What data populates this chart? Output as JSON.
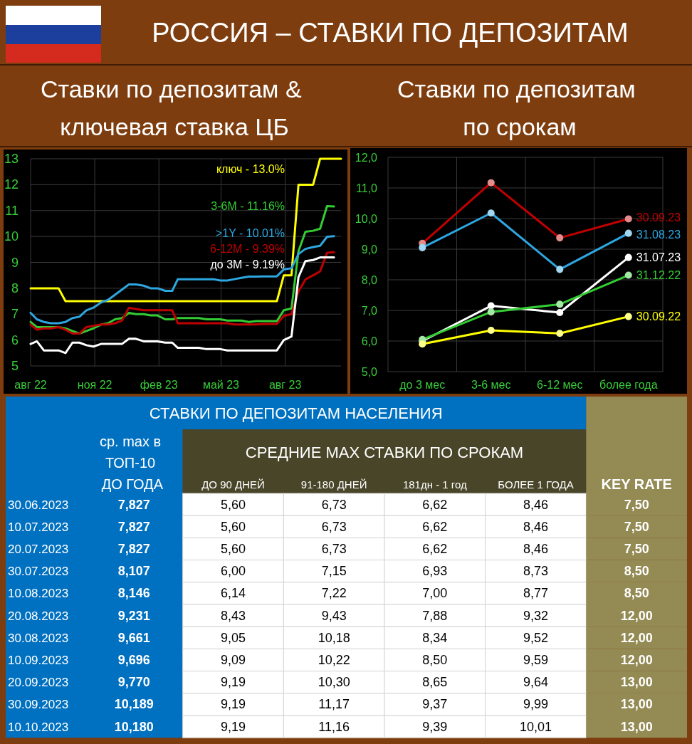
{
  "chart_data": [
    {
      "type": "other",
      "title": "РОССИЯ – СТАВКИ ПО ДЕПОЗИТАМ"
    },
    {
      "type": "line",
      "title": "Ставки по депозитам & ключевая ставка ЦБ",
      "x": [
        "2022-08-01",
        "2022-08-10",
        "2022-08-20",
        "2022-08-30",
        "2022-09-10",
        "2022-09-20",
        "2022-09-30",
        "2022-10-10",
        "2022-10-20",
        "2022-10-30",
        "2022-11-10",
        "2022-11-20",
        "2022-11-30",
        "2022-12-10",
        "2022-12-20",
        "2022-12-30",
        "2023-01-10",
        "2023-01-20",
        "2023-01-30",
        "2023-02-10",
        "2023-02-20",
        "2023-02-28",
        "2023-03-10",
        "2023-03-20",
        "2023-03-30",
        "2023-04-10",
        "2023-04-20",
        "2023-04-30",
        "2023-05-10",
        "2023-05-20",
        "2023-05-30",
        "2023-06-10",
        "2023-06-20",
        "2023-06-30",
        "2023-07-10",
        "2023-07-20",
        "2023-07-30",
        "2023-08-10",
        "2023-08-20",
        "2023-08-30",
        "2023-09-10",
        "2023-09-20",
        "2023-09-30",
        "2023-10-10"
      ],
      "xlim": [
        "2022-08-01",
        "2023-10-20"
      ],
      "xticks": [
        {
          "value": "2022-08-01",
          "label": "авг 22"
        },
        {
          "value": "2022-11-01",
          "label": "ноя 22"
        },
        {
          "value": "2023-02-01",
          "label": "фев 23"
        },
        {
          "value": "2023-05-01",
          "label": "май 23"
        },
        {
          "value": "2023-08-01",
          "label": "авг 23"
        }
      ],
      "ylim": [
        5,
        13
      ],
      "yticks": [
        5,
        6,
        7,
        8,
        9,
        10,
        11,
        12,
        13
      ],
      "grid": true,
      "series": [
        {
          "name": "ключ - 13.0%",
          "color": "#ffff00",
          "x": [
            "2022-08-01",
            "2022-09-10",
            "2022-09-20",
            "2023-07-20",
            "2023-07-30",
            "2023-08-10",
            "2023-08-20",
            "2023-09-10",
            "2023-09-20",
            "2023-10-20"
          ],
          "values": [
            8,
            8,
            7.5,
            7.5,
            8.5,
            8.5,
            12,
            12,
            13,
            13
          ]
        },
        {
          "name": "3-6M - 11.16%",
          "color": "#33cc33",
          "values": [
            6.7,
            6.5,
            6.5,
            6.5,
            6.5,
            6.45,
            6.35,
            6.25,
            6.35,
            6.45,
            6.6,
            6.65,
            6.8,
            6.85,
            7.05,
            7.0,
            7.0,
            6.95,
            6.95,
            6.8,
            6.8,
            6.85,
            6.85,
            6.85,
            6.85,
            6.8,
            6.8,
            6.8,
            6.75,
            6.75,
            6.75,
            6.7,
            6.73,
            6.73,
            6.73,
            6.73,
            7.15,
            7.22,
            9.43,
            10.18,
            10.22,
            10.3,
            11.17,
            11.16
          ]
        },
        {
          "name": ">1Y - 10.01%",
          "color": "#2ea6e0",
          "values": [
            7.05,
            6.8,
            6.7,
            6.65,
            6.65,
            6.7,
            6.85,
            6.9,
            7.15,
            7.25,
            7.45,
            7.55,
            7.75,
            7.95,
            8.15,
            8.15,
            8.1,
            8.0,
            8.0,
            7.9,
            7.9,
            8.35,
            8.35,
            8.35,
            8.35,
            8.35,
            8.35,
            8.3,
            8.3,
            8.35,
            8.4,
            8.45,
            8.45,
            8.46,
            8.46,
            8.46,
            8.73,
            8.77,
            9.32,
            9.52,
            9.59,
            9.64,
            9.99,
            10.01
          ]
        },
        {
          "name": "6-12M - 9.39%",
          "color": "#c00000",
          "values": [
            6.6,
            6.4,
            6.45,
            6.45,
            6.5,
            6.4,
            6.25,
            6.25,
            6.5,
            6.55,
            6.6,
            6.6,
            6.65,
            6.75,
            7.25,
            7.2,
            7.15,
            7.15,
            7.15,
            7.15,
            7.15,
            6.65,
            6.65,
            6.65,
            6.65,
            6.65,
            6.65,
            6.65,
            6.65,
            6.6,
            6.6,
            6.6,
            6.6,
            6.62,
            6.62,
            6.62,
            6.93,
            7.0,
            7.88,
            8.34,
            8.5,
            8.65,
            9.37,
            9.39
          ]
        },
        {
          "name": "до 3M - 9.19%",
          "color": "#ffffff",
          "values": [
            5.85,
            5.95,
            5.6,
            5.6,
            5.6,
            5.5,
            5.9,
            5.9,
            5.8,
            5.75,
            5.85,
            5.85,
            5.85,
            5.85,
            6.05,
            6.05,
            5.95,
            5.95,
            5.95,
            5.9,
            5.9,
            5.7,
            5.7,
            5.7,
            5.7,
            5.65,
            5.65,
            5.65,
            5.6,
            5.6,
            5.6,
            5.6,
            5.6,
            5.6,
            5.6,
            5.6,
            6.0,
            6.14,
            8.43,
            9.05,
            9.09,
            9.19,
            9.19,
            9.19
          ]
        }
      ]
    },
    {
      "type": "line",
      "title": "Ставки по депозитам по срокам",
      "categories": [
        "до 3 мес",
        "3-6 мес",
        "6-12 мес",
        "более года"
      ],
      "ylim": [
        5,
        12
      ],
      "yticks": [
        {
          "value": 5,
          "label": "5,0"
        },
        {
          "value": 6,
          "label": "6,0"
        },
        {
          "value": 7,
          "label": "7,0"
        },
        {
          "value": 8,
          "label": "8,0"
        },
        {
          "value": 9,
          "label": "9,0"
        },
        {
          "value": 10,
          "label": "10,0"
        },
        {
          "value": 11,
          "label": "11,0"
        },
        {
          "value": 12,
          "label": "12,0"
        }
      ],
      "grid": true,
      "marker": "circle",
      "series": [
        {
          "name": "30.09.23",
          "color": "#c00000",
          "values": [
            9.19,
            11.17,
            9.37,
            9.99
          ]
        },
        {
          "name": "31.08.23",
          "color": "#2ea6e0",
          "values": [
            9.05,
            10.18,
            8.34,
            9.52
          ]
        },
        {
          "name": "31.07.23",
          "color": "#ffffff",
          "values": [
            6.0,
            7.15,
            6.93,
            8.73
          ]
        },
        {
          "name": "31.12.22",
          "color": "#33cc33",
          "values": [
            6.05,
            6.95,
            7.2,
            8.15
          ]
        },
        {
          "name": "30.09.22",
          "color": "#ffff00",
          "values": [
            5.9,
            6.35,
            6.25,
            6.8
          ]
        }
      ]
    },
    {
      "type": "heatmap",
      "title": "СТАВКИ ПО ДЕПОЗИТАМ НАСЕЛЕНИЯ",
      "annotations": [
        "СРЕДНИЕ MAX СТАВКИ ПО СРОКАМ"
      ],
      "ylabel": "ср. max в ТОП-10 ДО ГОДА",
      "categories": [
        "ДО 90 ДНЕЙ",
        "91-180 ДНЕЙ",
        "181дн - 1 год",
        "БОЛЕЕ 1 ГОДА",
        "KEY RATE"
      ],
      "colors": [
        "#ffffff",
        "#ffffff",
        "#ffffff",
        "#ffffff",
        "#948a54"
      ],
      "y_categories": [
        "30.06.2023 7,827",
        "10.07.2023 7,827",
        "20.07.2023 7,827",
        "30.07.2023 8,107",
        "10.08.2023 8,146",
        "20.08.2023 9,231",
        "30.08.2023 9,661",
        "10.09.2023 9,696",
        "20.09.2023 9,770",
        "30.09.2023 10,189",
        "10.10.2023 10,180"
      ],
      "cells": [
        [
          5.6,
          6.73,
          6.62,
          8.46,
          7.5
        ],
        [
          5.6,
          6.73,
          6.62,
          8.46,
          7.5
        ],
        [
          5.6,
          6.73,
          6.62,
          8.46,
          7.5
        ],
        [
          6.0,
          7.15,
          6.93,
          8.73,
          8.5
        ],
        [
          6.14,
          7.22,
          7.0,
          8.77,
          8.5
        ],
        [
          8.43,
          9.43,
          7.88,
          9.32,
          12.0
        ],
        [
          9.05,
          10.18,
          8.34,
          9.52,
          12.0
        ],
        [
          9.09,
          10.22,
          8.5,
          9.59,
          12.0
        ],
        [
          9.19,
          10.3,
          8.65,
          9.64,
          13.0
        ],
        [
          9.19,
          11.17,
          9.37,
          9.99,
          13.0
        ],
        [
          9.19,
          11.16,
          9.39,
          10.01,
          13.0
        ]
      ],
      "cell_labels": [
        [
          "5,60",
          "6,73",
          "6,62",
          "8,46",
          "7,50"
        ],
        [
          "5,60",
          "6,73",
          "6,62",
          "8,46",
          "7,50"
        ],
        [
          "5,60",
          "6,73",
          "6,62",
          "8,46",
          "7,50"
        ],
        [
          "6,00",
          "7,15",
          "6,93",
          "8,73",
          "8,50"
        ],
        [
          "6,14",
          "7,22",
          "7,00",
          "8,77",
          "8,50"
        ],
        [
          "8,43",
          "9,43",
          "7,88",
          "9,32",
          "12,00"
        ],
        [
          "9,05",
          "10,18",
          "8,34",
          "9,52",
          "12,00"
        ],
        [
          "9,09",
          "10,22",
          "8,50",
          "9,59",
          "12,00"
        ],
        [
          "9,19",
          "10,30",
          "8,65",
          "9,64",
          "13,00"
        ],
        [
          "9,19",
          "11,17",
          "9,37",
          "9,99",
          "13,00"
        ],
        [
          "9,19",
          "11,16",
          "9,39",
          "10,01",
          "13,00"
        ]
      ]
    }
  ]
}
